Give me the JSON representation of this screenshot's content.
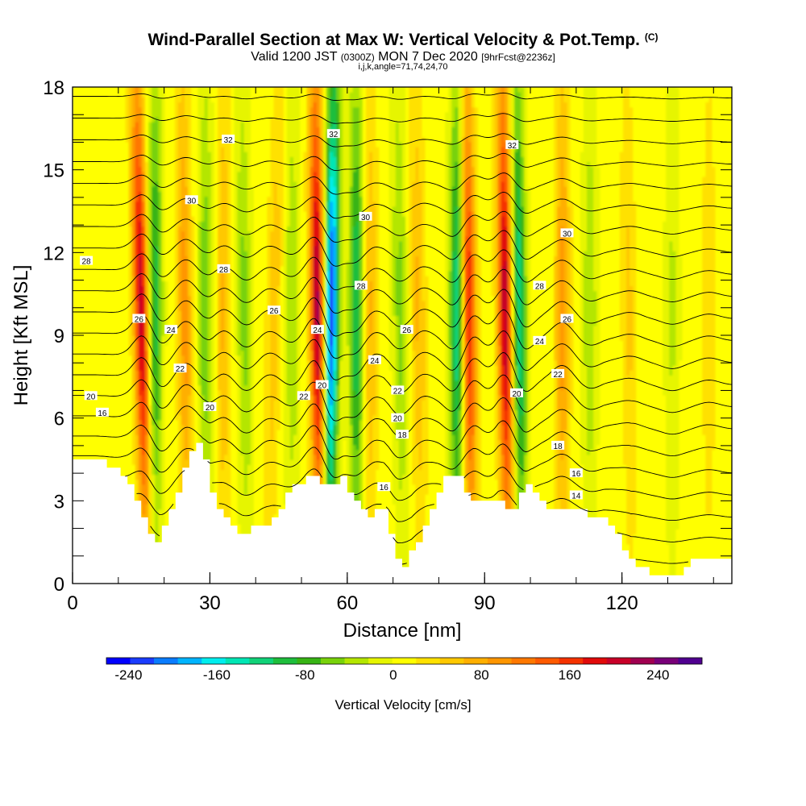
{
  "title": "Wind-Parallel Section at Max W: Vertical Velocity & Pot.Temp.",
  "copyright": "(C)",
  "subtitle_pre": "Valid 1200 JST",
  "subtitle_z": "(0300Z)",
  "subtitle_mid": "MON 7 Dec 2020",
  "subtitle_fcst": "[9hrFcst@2236z]",
  "grid_info": "i,j,k,angle=71,74,24,70",
  "chart_data": {
    "type": "heatmap",
    "xlabel": "Distance [nm]",
    "ylabel": "Height [Kft MSL]",
    "xlim": [
      0,
      144
    ],
    "ylim": [
      0,
      18
    ],
    "x_ticks": [
      0,
      30,
      60,
      90,
      120
    ],
    "y_ticks": [
      0,
      3,
      6,
      9,
      12,
      15,
      18
    ],
    "colorbar": {
      "label": "Vertical Velocity [cm/s]",
      "ticks": [
        -240,
        -160,
        -80,
        0,
        80,
        160,
        240
      ],
      "range": [
        -260,
        280
      ],
      "colors": [
        "#0000ff",
        "#1a3cff",
        "#0a7cff",
        "#00b4ff",
        "#00eeee",
        "#00e6b4",
        "#10d278",
        "#1ebe3c",
        "#37b414",
        "#78d20a",
        "#b4e600",
        "#e6f500",
        "#ffff00",
        "#ffe100",
        "#ffc800",
        "#ffaf00",
        "#ff9600",
        "#ff7800",
        "#ff5a00",
        "#f53200",
        "#e10a0a",
        "#c80028",
        "#a00050",
        "#780078",
        "#500090"
      ]
    },
    "terrain_profile": {
      "x": [
        0,
        5,
        7,
        9,
        11,
        13,
        15,
        17,
        18,
        19,
        20,
        21,
        22,
        23,
        24,
        25,
        27,
        28,
        29,
        30,
        32,
        34,
        37,
        40,
        43,
        45,
        47,
        49,
        51,
        53,
        55,
        57,
        58,
        59,
        60,
        62,
        64,
        65,
        67,
        68,
        69,
        70,
        71,
        72,
        73,
        74,
        76,
        78,
        80,
        82,
        84,
        85,
        87,
        89,
        90,
        92,
        93,
        94,
        95,
        96,
        97,
        98,
        100,
        102,
        104,
        108,
        112,
        116,
        118,
        120,
        122,
        124,
        126,
        128,
        130,
        132,
        134,
        136,
        138,
        140,
        142,
        144
      ],
      "height": [
        4.5,
        4.5,
        4.4,
        4.2,
        4.0,
        3.5,
        2.8,
        2.0,
        1.7,
        1.6,
        1.9,
        2.3,
        2.8,
        3.3,
        3.8,
        4.2,
        5.0,
        5.1,
        4.8,
        3.8,
        2.8,
        2.2,
        1.9,
        2.0,
        2.2,
        2.6,
        3.1,
        3.5,
        3.8,
        3.9,
        3.7,
        3.5,
        3.6,
        3.8,
        3.6,
        3.0,
        2.6,
        2.5,
        2.7,
        2.9,
        2.4,
        1.6,
        0.9,
        0.6,
        0.7,
        1.0,
        1.6,
        2.4,
        3.3,
        3.9,
        4.1,
        3.8,
        3.0,
        2.9,
        2.9,
        3.0,
        3.2,
        3.0,
        2.6,
        2.5,
        2.7,
        3.2,
        3.6,
        3.2,
        2.8,
        2.7,
        2.6,
        2.4,
        2.0,
        1.5,
        1.0,
        0.6,
        0.4,
        0.3,
        0.3,
        0.3,
        0.6,
        1.0,
        1.0,
        1.0,
        1.0,
        1.0
      ]
    },
    "w_cores": [
      {
        "x_base": 16,
        "x_top": 14,
        "sign": 1,
        "peak": 200
      },
      {
        "x_base": 18,
        "x_top": 18,
        "sign": -1,
        "peak": 110
      },
      {
        "x_base": 25,
        "x_top": 24,
        "sign": 1,
        "peak": 90
      },
      {
        "x_base": 29,
        "x_top": 29,
        "sign": -1,
        "peak": 70
      },
      {
        "x_base": 33,
        "x_top": 33,
        "sign": 1,
        "peak": 60
      },
      {
        "x_base": 38,
        "x_top": 37,
        "sign": -1,
        "peak": 60
      },
      {
        "x_base": 43,
        "x_top": 45,
        "sign": 1,
        "peak": 50
      },
      {
        "x_base": 48,
        "x_top": 48,
        "sign": -1,
        "peak": 50
      },
      {
        "x_base": 54,
        "x_top": 53,
        "sign": 1,
        "peak": 220
      },
      {
        "x_base": 56,
        "x_top": 57,
        "sign": -1,
        "peak": 240
      },
      {
        "x_base": 62,
        "x_top": 62,
        "sign": -1,
        "peak": 120
      },
      {
        "x_base": 65,
        "x_top": 65,
        "sign": 1,
        "peak": 60
      },
      {
        "x_base": 72,
        "x_top": 71,
        "sign": -1,
        "peak": 60
      },
      {
        "x_base": 76,
        "x_top": 75,
        "sign": 1,
        "peak": 60
      },
      {
        "x_base": 84,
        "x_top": 84,
        "sign": -1,
        "peak": 140
      },
      {
        "x_base": 87,
        "x_top": 86,
        "sign": 1,
        "peak": 170
      },
      {
        "x_base": 95,
        "x_top": 94,
        "sign": 1,
        "peak": 210
      },
      {
        "x_base": 98,
        "x_top": 97,
        "sign": -1,
        "peak": 140
      },
      {
        "x_base": 107,
        "x_top": 107,
        "sign": 1,
        "peak": 90
      },
      {
        "x_base": 113,
        "x_top": 113,
        "sign": -1,
        "peak": 50
      },
      {
        "x_base": 122,
        "x_top": 121,
        "sign": 1,
        "peak": 40
      },
      {
        "x_base": 131,
        "x_top": 131,
        "sign": -1,
        "peak": 35
      },
      {
        "x_base": 139,
        "x_top": 139,
        "sign": 1,
        "peak": 30
      }
    ],
    "theta_levels": [
      12,
      13,
      14,
      15,
      16,
      17,
      18,
      19,
      20,
      21,
      22,
      23,
      24,
      25,
      26,
      27,
      28,
      29,
      30,
      31,
      32,
      33,
      34
    ],
    "theta_label_marks": [
      {
        "text": "32",
        "x": 34,
        "y": 16.1
      },
      {
        "text": "32",
        "x": 57,
        "y": 16.3
      },
      {
        "text": "32",
        "x": 96,
        "y": 15.9
      },
      {
        "text": "30",
        "x": 26,
        "y": 13.9
      },
      {
        "text": "30",
        "x": 64,
        "y": 13.3
      },
      {
        "text": "30",
        "x": 108,
        "y": 12.7
      },
      {
        "text": "28",
        "x": 3,
        "y": 11.7
      },
      {
        "text": "28",
        "x": 33,
        "y": 11.4
      },
      {
        "text": "28",
        "x": 63,
        "y": 10.8
      },
      {
        "text": "28",
        "x": 102,
        "y": 10.8
      },
      {
        "text": "26",
        "x": 44,
        "y": 9.9
      },
      {
        "text": "26",
        "x": 73,
        "y": 9.2
      },
      {
        "text": "26",
        "x": 108,
        "y": 9.6
      },
      {
        "text": "26",
        "x": 14.5,
        "y": 9.6
      },
      {
        "text": "24",
        "x": 21.5,
        "y": 9.2
      },
      {
        "text": "24",
        "x": 53.5,
        "y": 9.2
      },
      {
        "text": "24",
        "x": 66,
        "y": 8.1
      },
      {
        "text": "24",
        "x": 102,
        "y": 8.8
      },
      {
        "text": "22",
        "x": 23.5,
        "y": 7.8
      },
      {
        "text": "22",
        "x": 50.5,
        "y": 6.8
      },
      {
        "text": "22",
        "x": 71,
        "y": 7.0
      },
      {
        "text": "22",
        "x": 106,
        "y": 7.6
      },
      {
        "text": "20",
        "x": 4,
        "y": 6.8
      },
      {
        "text": "20",
        "x": 30,
        "y": 6.4
      },
      {
        "text": "20",
        "x": 54.5,
        "y": 7.2
      },
      {
        "text": "20",
        "x": 71,
        "y": 6.0
      },
      {
        "text": "20",
        "x": 97,
        "y": 6.9
      },
      {
        "text": "18",
        "x": 72,
        "y": 5.4
      },
      {
        "text": "18",
        "x": 106,
        "y": 5.0
      },
      {
        "text": "16",
        "x": 6.5,
        "y": 6.2
      },
      {
        "text": "16",
        "x": 68,
        "y": 3.5
      },
      {
        "text": "16",
        "x": 110,
        "y": 4.0
      },
      {
        "text": "14",
        "x": 110,
        "y": 3.2
      }
    ]
  }
}
